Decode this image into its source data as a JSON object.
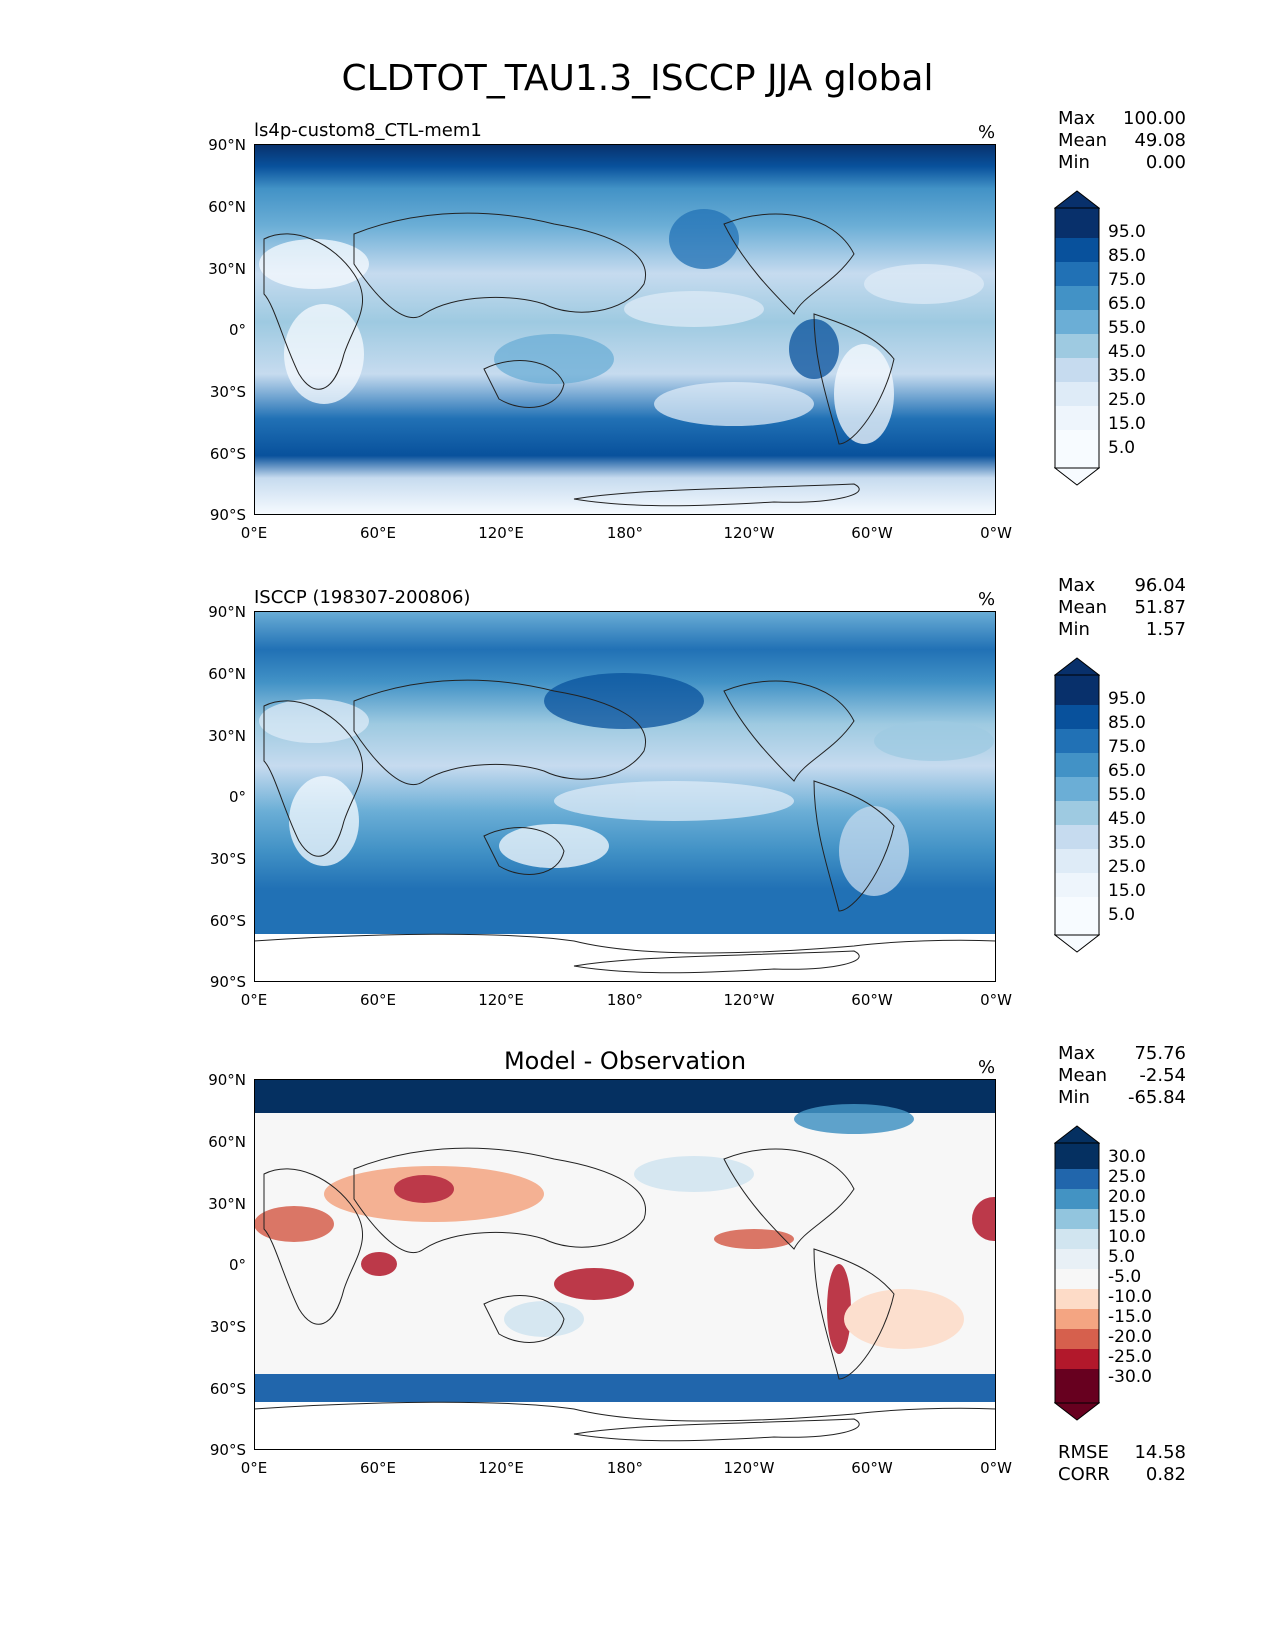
{
  "figure_title": "CLDTOT_TAU1.3_ISCCP JJA global",
  "axes": {
    "lat_labels": [
      "90°N",
      "60°N",
      "30°N",
      "0°",
      "30°S",
      "60°S",
      "90°S"
    ],
    "lon_labels": [
      "0°E",
      "60°E",
      "120°E",
      "180°",
      "120°W",
      "60°W",
      "0°W"
    ]
  },
  "panels": [
    {
      "title": "ls4p-custom8_CTL-mem1",
      "units": "%",
      "stats": {
        "max_label": "Max",
        "max": "100.00",
        "mean_label": "Mean",
        "mean": "49.08",
        "min_label": "Min",
        "min": "0.00"
      },
      "colorbar_labels": [
        "95.0",
        "85.0",
        "75.0",
        "65.0",
        "55.0",
        "45.0",
        "35.0",
        "25.0",
        "15.0",
        "5.0"
      ]
    },
    {
      "title": "ISCCP (198307-200806)",
      "units": "%",
      "stats": {
        "max_label": "Max",
        "max": "96.04",
        "mean_label": "Mean",
        "mean": "51.87",
        "min_label": "Min",
        "min": "1.57"
      },
      "colorbar_labels": [
        "95.0",
        "85.0",
        "75.0",
        "65.0",
        "55.0",
        "45.0",
        "35.0",
        "25.0",
        "15.0",
        "5.0"
      ]
    },
    {
      "title": "Model - Observation",
      "units": "%",
      "stats": {
        "max_label": "Max",
        "max": "75.76",
        "mean_label": "Mean",
        "mean": "-2.54",
        "min_label": "Min",
        "min": "-65.84"
      },
      "colorbar_labels": [
        "30.0",
        "25.0",
        "20.0",
        "15.0",
        "10.0",
        "5.0",
        "-5.0",
        "-10.0",
        "-15.0",
        "-20.0",
        "-25.0",
        "-30.0"
      ]
    }
  ],
  "error_stats": {
    "rmse_label": "RMSE",
    "rmse": "14.58",
    "corr_label": "CORR",
    "corr": "0.82"
  },
  "colors": {
    "blues": [
      "#f7fbff",
      "#deebf7",
      "#c6dbef",
      "#9ecae1",
      "#6baed6",
      "#4292c6",
      "#2171b5",
      "#08519c",
      "#08306b"
    ],
    "rdbu": [
      "#67001f",
      "#b2182b",
      "#d6604d",
      "#f4a582",
      "#fddbc7",
      "#f7f7f7",
      "#d1e5f0",
      "#92c5de",
      "#4393c3",
      "#2166ac",
      "#053061"
    ]
  }
}
